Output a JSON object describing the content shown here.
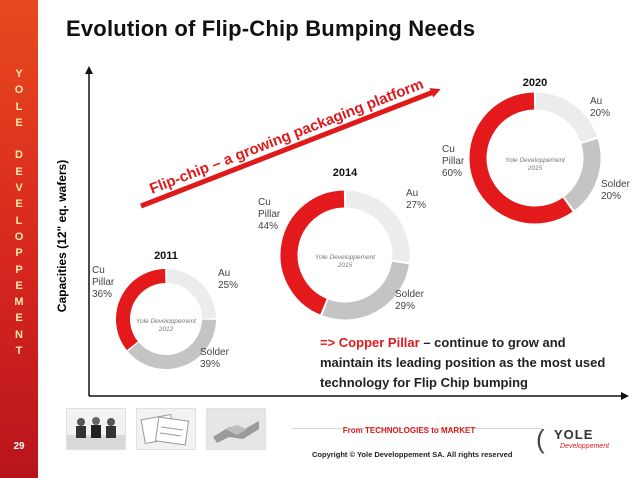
{
  "slide": {
    "title": "Evolution of Flip-Chip Bumping Needs",
    "page_number": "29",
    "sidebar_letters": [
      "Y",
      "O",
      "L",
      "E",
      "",
      "D",
      "E",
      "V",
      "E",
      "L",
      "O",
      "P",
      "P",
      "E",
      "M",
      "E",
      "N",
      "T"
    ]
  },
  "colors": {
    "cu_pillar": "#e4191c",
    "au": "#ececec",
    "solder": "#c4c4c4",
    "sidebar": "#d7261f",
    "arrow": "#e0191b"
  },
  "chart_data": {
    "type": "pie",
    "style": "donut",
    "ylabel": "Capacities (12\" eq. wafers)",
    "trend_label": "Flip-chip – a growing packaging platform",
    "watermark": "Yole Developpement",
    "series_names": [
      "Cu Pillar",
      "Au",
      "Solder"
    ],
    "donuts": [
      {
        "year": "2011",
        "watermark_year": "2012",
        "slices": [
          {
            "name": "Cu Pillar",
            "value": 36,
            "label_lines": [
              "Cu",
              "Pillar",
              "36%"
            ]
          },
          {
            "name": "Au",
            "value": 25,
            "label_lines": [
              "Au",
              "25%"
            ]
          },
          {
            "name": "Solder",
            "value": 39,
            "label_lines": [
              "Solder",
              "39%"
            ]
          }
        ]
      },
      {
        "year": "2014",
        "watermark_year": "2015",
        "slices": [
          {
            "name": "Cu Pillar",
            "value": 44,
            "label_lines": [
              "Cu",
              "Pillar",
              "44%"
            ]
          },
          {
            "name": "Au",
            "value": 27,
            "label_lines": [
              "Au",
              "27%"
            ]
          },
          {
            "name": "Solder",
            "value": 29,
            "label_lines": [
              "Solder",
              "29%"
            ]
          }
        ]
      },
      {
        "year": "2020",
        "watermark_year": "2015",
        "slices": [
          {
            "name": "Cu Pillar",
            "value": 60,
            "label_lines": [
              "Cu",
              "Pillar",
              "60%"
            ]
          },
          {
            "name": "Au",
            "value": 20,
            "label_lines": [
              "Au",
              "20%"
            ]
          },
          {
            "name": "Solder",
            "value": 20,
            "label_lines": [
              "Solder",
              "20%"
            ]
          }
        ]
      }
    ]
  },
  "callout": {
    "highlight": "=> Copper Pillar",
    "rest": " – continue to grow and maintain its leading position as  the most used technology for Flip Chip bumping"
  },
  "footer": {
    "tagline": "From TECHNOLOGIES to MARKET",
    "copyright": "Copyright © Yole Developpement SA. All rights reserved",
    "logo_name": "YOLE",
    "logo_sub": "Developpement"
  }
}
